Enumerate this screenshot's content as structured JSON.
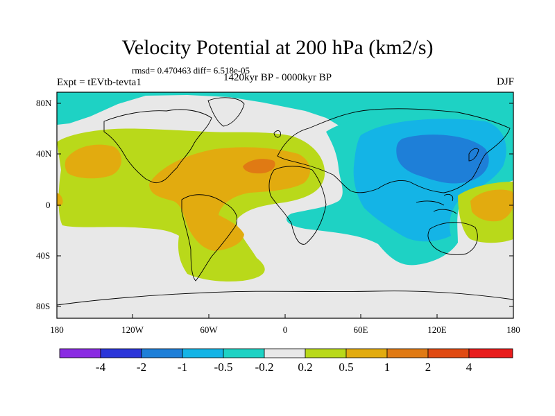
{
  "title": "Velocity Potential at 200 hPa (km2/s)",
  "stats": "rmsd= 0.470463 diff= 6.518e-05",
  "experiment": "Expt = tEVtb-tevta1",
  "period": "1420kyr BP - 0000kyr BP",
  "season": "DJF",
  "lat_labels": [
    "80N",
    "40N",
    "0",
    "40S",
    "80S"
  ],
  "lon_labels": [
    "180",
    "120W",
    "60W",
    "0",
    "60E",
    "120E",
    "180"
  ],
  "colorbar": {
    "labels": [
      "-4",
      "-2",
      "-1",
      "-0.5",
      "-0.2",
      "0.2",
      "0.5",
      "1",
      "2",
      "4"
    ],
    "colors": [
      "#8a2be2",
      "#2b35d9",
      "#1e7fd8",
      "#14b4e6",
      "#1ed2c4",
      "#e8e8e8",
      "#b9d91a",
      "#e2ab0f",
      "#e07a14",
      "#e04a12",
      "#e81c1c"
    ]
  },
  "field_colors": {
    "neutral": "#e8e8e8",
    "neg_02": "#1ed2c4",
    "neg_05": "#14b4e6",
    "neg_1": "#1e7fd8",
    "pos_02": "#b9d91a",
    "pos_05": "#e2ab0f",
    "pos_1": "#e07a14"
  }
}
